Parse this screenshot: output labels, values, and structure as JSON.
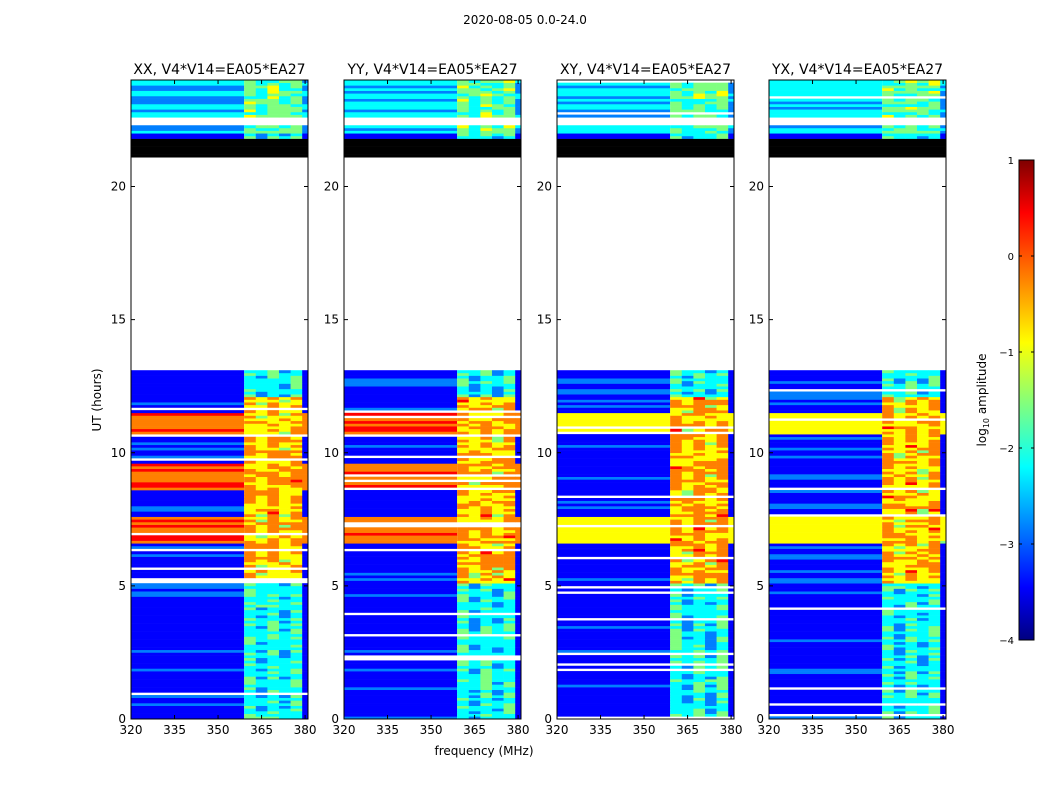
{
  "figure_title": "2020-08-05 0.0-24.0",
  "colors": {
    "jet": [
      "#00007f",
      "#0000ff",
      "#007fff",
      "#00ffff",
      "#7fff7f",
      "#ffff00",
      "#ff7f00",
      "#ff0000",
      "#7f0000"
    ],
    "gap": "#ffffff",
    "flagged": "#000000"
  },
  "chart_data": [
    {
      "type": "heatmap",
      "title": "XX, V4*V14=EA05*EA27",
      "xlabel": "frequency (MHz)",
      "ylabel": "UT (hours)",
      "xlim": [
        320,
        381
      ],
      "ylim": [
        0,
        24
      ],
      "xticks": [
        "320",
        "335",
        "350",
        "365",
        "380"
      ],
      "yticks": [
        "0",
        "5",
        "10",
        "15",
        "20"
      ],
      "rfi_band_mhz": [
        359,
        379
      ],
      "no_data_hours": [
        [
          13.0,
          21.1
        ],
        [
          22.3,
          22.6
        ]
      ],
      "flagged_hours": [
        [
          21.1,
          21.8
        ]
      ],
      "strong_hours": [
        [
          6.5,
          7.5
        ],
        [
          8.5,
          9.5
        ],
        [
          10.6,
          11.4
        ]
      ]
    },
    {
      "type": "heatmap",
      "title": "YY, V4*V14=EA05*EA27",
      "xlabel": "",
      "ylabel": "",
      "xlim": [
        320,
        381
      ],
      "ylim": [
        0,
        24
      ],
      "xticks": [
        "320",
        "335",
        "350",
        "365",
        "380"
      ],
      "yticks": [
        "0",
        "5",
        "10",
        "15",
        "20"
      ],
      "rfi_band_mhz": [
        359,
        379
      ],
      "no_data_hours": [
        [
          13.0,
          21.1
        ],
        [
          22.3,
          22.6
        ]
      ],
      "flagged_hours": [
        [
          21.1,
          21.8
        ]
      ],
      "strong_hours": [
        [
          6.5,
          7.5
        ],
        [
          8.5,
          9.5
        ],
        [
          10.6,
          11.4
        ]
      ]
    },
    {
      "type": "heatmap",
      "title": "XY, V4*V14=EA05*EA27",
      "xlabel": "",
      "ylabel": "",
      "xlim": [
        320,
        381
      ],
      "ylim": [
        0,
        24
      ],
      "xticks": [
        "320",
        "335",
        "350",
        "365",
        "380"
      ],
      "yticks": [
        "0",
        "5",
        "10",
        "15",
        "20"
      ],
      "rfi_band_mhz": [
        359,
        379
      ],
      "no_data_hours": [
        [
          13.0,
          21.1
        ],
        [
          22.3,
          22.6
        ]
      ],
      "flagged_hours": [
        [
          21.1,
          21.8
        ]
      ],
      "strong_hours": [
        [
          6.5,
          7.5
        ],
        [
          10.6,
          11.4
        ]
      ]
    },
    {
      "type": "heatmap",
      "title": "YX, V4*V14=EA05*EA27",
      "xlabel": "",
      "ylabel": "",
      "xlim": [
        320,
        381
      ],
      "ylim": [
        0,
        24
      ],
      "xticks": [
        "320",
        "335",
        "350",
        "365",
        "380"
      ],
      "yticks": [
        "0",
        "5",
        "10",
        "15",
        "20"
      ],
      "rfi_band_mhz": [
        359,
        379
      ],
      "no_data_hours": [
        [
          13.0,
          21.1
        ],
        [
          22.3,
          22.6
        ]
      ],
      "flagged_hours": [
        [
          21.1,
          21.8
        ]
      ],
      "strong_hours": [
        [
          6.5,
          7.5
        ],
        [
          10.6,
          11.4
        ]
      ]
    }
  ],
  "colorbar": {
    "label": "log10 amplitude",
    "label_main": "log",
    "label_sub": "10",
    "label_rest": " amplitude",
    "range": [
      -4,
      1
    ],
    "ticks": [
      "1",
      "0",
      "−1",
      "−2",
      "−3",
      "−4"
    ],
    "tick_values": [
      1,
      0,
      -1,
      -2,
      -3,
      -4
    ]
  }
}
